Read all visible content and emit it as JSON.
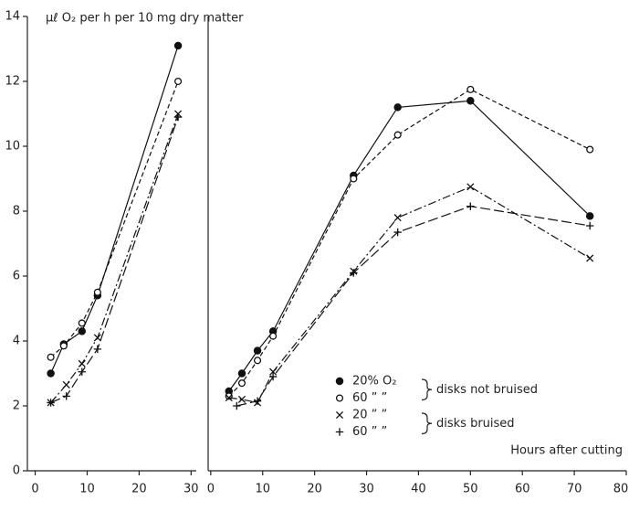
{
  "chart_data": [
    {
      "type": "line",
      "ylabel": "μℓ O₂ per h per 10 mg dry matter",
      "xlim": [
        -1.5,
        31
      ],
      "xticks": [
        0,
        10,
        20,
        30
      ],
      "ylim": [
        0,
        14
      ],
      "yticks": [
        0,
        2,
        4,
        6,
        8,
        10,
        12,
        14
      ],
      "series": [
        {
          "marker": "filled-circle",
          "dash": "solid",
          "color": "#111",
          "x": [
            3,
            5.5,
            9,
            12,
            27.5
          ],
          "values": [
            3.0,
            3.9,
            4.3,
            5.4,
            13.1
          ]
        },
        {
          "marker": "open-circle",
          "dash": "dashed",
          "color": "#111",
          "x": [
            3,
            5.5,
            9,
            12,
            27.5
          ],
          "values": [
            3.5,
            3.85,
            4.55,
            5.5,
            12.0
          ]
        },
        {
          "marker": "cross",
          "dash": "dash-dot",
          "color": "#111",
          "x": [
            3,
            6,
            9,
            12,
            27.5
          ],
          "values": [
            2.1,
            2.65,
            3.3,
            4.1,
            11.0
          ]
        },
        {
          "marker": "plus",
          "dash": "long-dash",
          "color": "#111",
          "x": [
            3,
            6,
            9,
            12,
            27.5
          ],
          "values": [
            2.1,
            2.3,
            3.05,
            3.75,
            10.9
          ]
        }
      ]
    },
    {
      "type": "line",
      "xlabel": "Hours after cutting",
      "xlim": [
        -0.5,
        80
      ],
      "xticks": [
        0,
        10,
        20,
        30,
        40,
        50,
        60,
        70,
        80
      ],
      "ylim": [
        0,
        14
      ],
      "brackets": [
        "disks not bruised",
        "disks bruised"
      ],
      "series": [
        {
          "name": "20% O₂",
          "marker": "filled-circle",
          "dash": "solid",
          "color": "#111",
          "x": [
            3.5,
            6,
            9,
            12,
            27.5,
            36,
            50,
            73
          ],
          "values": [
            2.45,
            3.0,
            3.7,
            4.3,
            9.1,
            11.2,
            11.4,
            7.85
          ]
        },
        {
          "name": "60  ”  ”",
          "marker": "open-circle",
          "dash": "dashed",
          "color": "#111",
          "x": [
            3.5,
            6,
            9,
            12,
            27.5,
            36,
            50,
            73
          ],
          "values": [
            2.3,
            2.7,
            3.4,
            4.15,
            9.0,
            10.35,
            11.75,
            9.9
          ]
        },
        {
          "name": "20  ”  ”",
          "marker": "cross",
          "dash": "dash-dot",
          "color": "#111",
          "x": [
            3.5,
            6,
            9,
            12,
            27.5,
            36,
            50,
            73
          ],
          "values": [
            2.25,
            2.2,
            2.1,
            3.05,
            6.15,
            7.8,
            8.75,
            6.55
          ]
        },
        {
          "name": "60  ”  ”",
          "marker": "plus",
          "dash": "long-dash",
          "color": "#111",
          "x": [
            5,
            9,
            12,
            27.5,
            36,
            50,
            73
          ],
          "values": [
            2.0,
            2.15,
            2.9,
            6.1,
            7.35,
            8.15,
            7.55
          ]
        }
      ]
    }
  ]
}
